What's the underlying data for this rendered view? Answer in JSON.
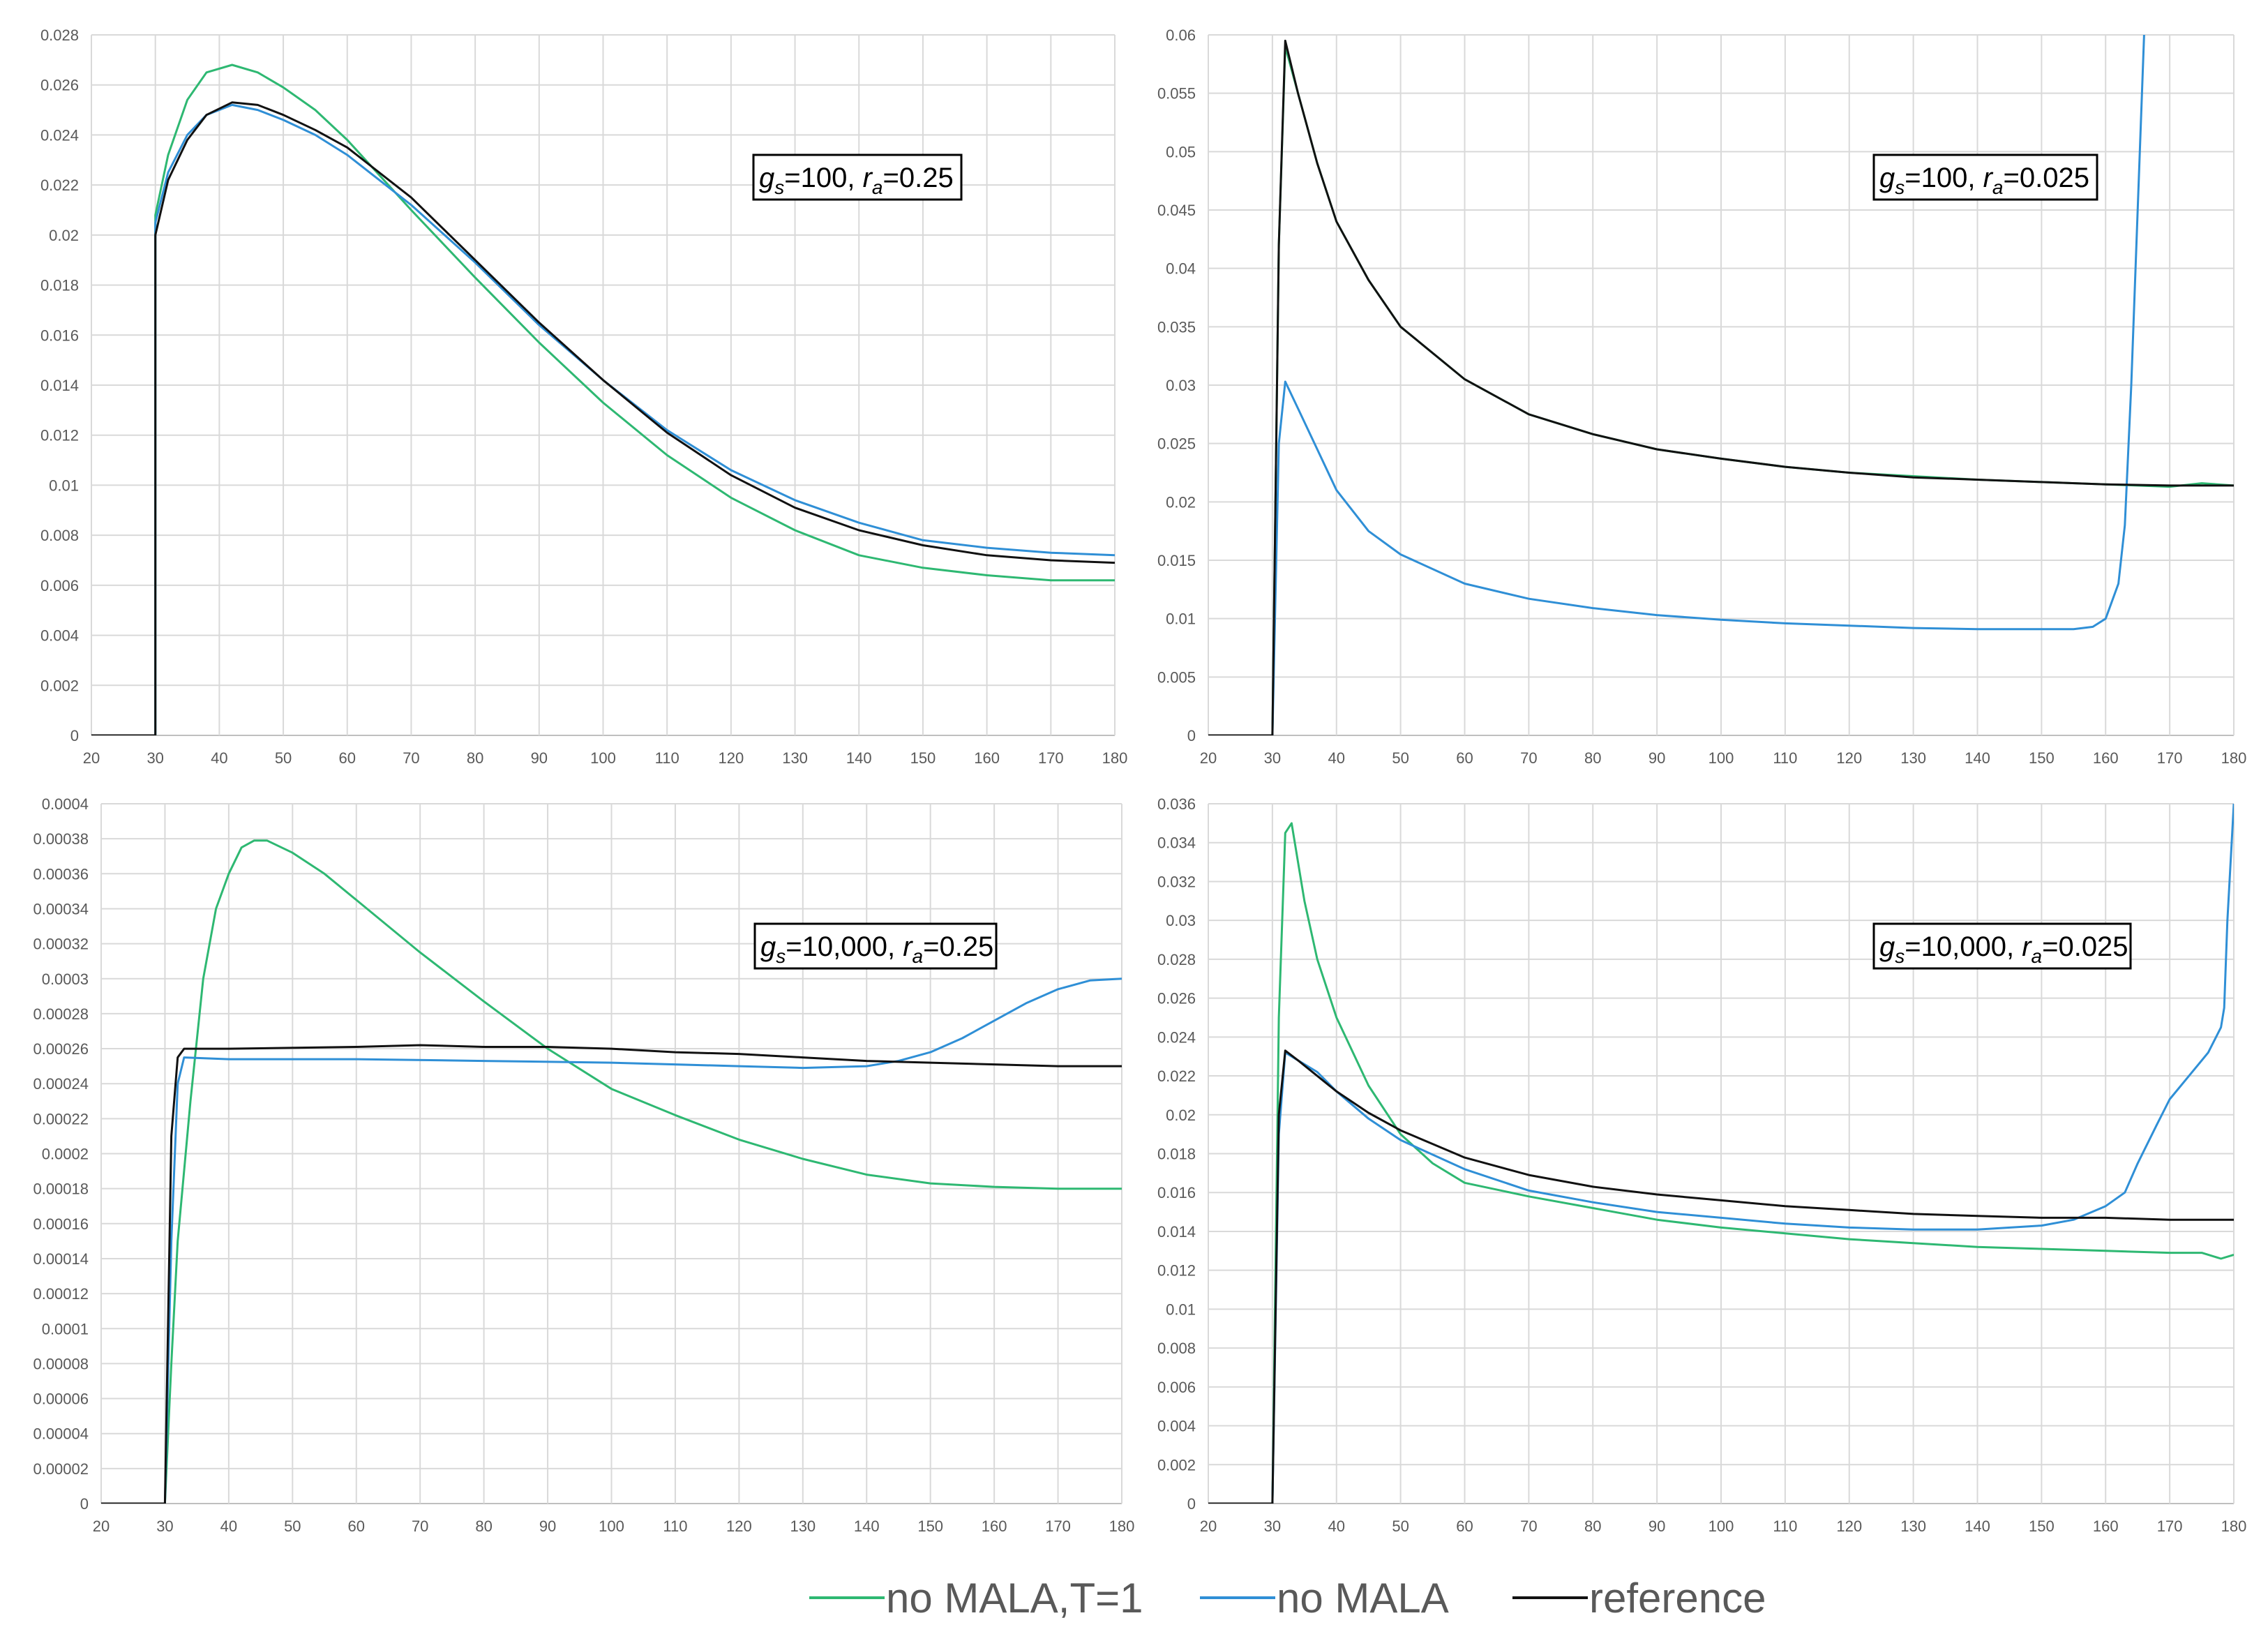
{
  "colors": {
    "green": "#2eb872",
    "blue": "#2f8fd6",
    "black": "#111111",
    "red": "#d62728",
    "grid": "#d9d9d9",
    "axis": "#bfbfbf"
  },
  "legend": [
    {
      "label": "no MALA,T=1",
      "color": "#2eb872"
    },
    {
      "label": "no MALA",
      "color": "#2f8fd6"
    },
    {
      "label": "reference",
      "color": "#111111"
    }
  ],
  "chart_data": [
    {
      "type": "line",
      "annotation": {
        "g": "100",
        "r": "0.25"
      },
      "xlim": [
        20,
        180
      ],
      "xticks": [
        20,
        30,
        40,
        50,
        60,
        70,
        80,
        90,
        100,
        110,
        120,
        130,
        140,
        150,
        160,
        170,
        180
      ],
      "ylim": [
        0,
        0.028
      ],
      "ytick_labels": [
        "0",
        "0.002",
        "0.004",
        "0.006",
        "0.008",
        "0.01",
        "0.012",
        "0.014",
        "0.016",
        "0.018",
        "0.02",
        "0.022",
        "0.024",
        "0.026",
        "0.028"
      ],
      "series": [
        {
          "name": "no MALA,T=1",
          "color": "#2eb872",
          "x": [
            20,
            30,
            30,
            32,
            35,
            38,
            42,
            46,
            50,
            55,
            60,
            70,
            80,
            90,
            100,
            110,
            120,
            130,
            140,
            150,
            160,
            170,
            180
          ],
          "y": [
            0,
            0,
            0.0208,
            0.0232,
            0.0254,
            0.0265,
            0.0268,
            0.0265,
            0.0259,
            0.025,
            0.0238,
            0.021,
            0.0183,
            0.0157,
            0.0133,
            0.0112,
            0.0095,
            0.0082,
            0.0072,
            0.0067,
            0.0064,
            0.0062,
            0.0062
          ]
        },
        {
          "name": "no MALA",
          "color": "#2f8fd6",
          "x": [
            20,
            30,
            30,
            32,
            35,
            38,
            42,
            46,
            50,
            55,
            60,
            70,
            80,
            90,
            100,
            110,
            120,
            130,
            140,
            150,
            160,
            170,
            180
          ],
          "y": [
            0,
            0,
            0.0205,
            0.0225,
            0.024,
            0.0248,
            0.0252,
            0.025,
            0.0246,
            0.024,
            0.0232,
            0.0212,
            0.0189,
            0.0164,
            0.0142,
            0.0122,
            0.0106,
            0.0094,
            0.0085,
            0.0078,
            0.0075,
            0.0073,
            0.0072
          ]
        },
        {
          "name": "reference",
          "color": "#111111",
          "x": [
            20,
            30,
            30,
            32,
            35,
            38,
            42,
            46,
            50,
            55,
            60,
            70,
            80,
            90,
            100,
            110,
            120,
            130,
            140,
            150,
            160,
            170,
            180
          ],
          "y": [
            0,
            0,
            0.02,
            0.0222,
            0.0238,
            0.0248,
            0.0253,
            0.0252,
            0.0248,
            0.0242,
            0.0235,
            0.0215,
            0.019,
            0.0165,
            0.0142,
            0.0121,
            0.0104,
            0.0091,
            0.0082,
            0.0076,
            0.0072,
            0.007,
            0.0069
          ]
        }
      ]
    },
    {
      "type": "line",
      "annotation": {
        "g": "100",
        "r": "0.025"
      },
      "xlim": [
        20,
        180
      ],
      "xticks": [
        20,
        30,
        40,
        50,
        60,
        70,
        80,
        90,
        100,
        110,
        120,
        130,
        140,
        150,
        160,
        170,
        180
      ],
      "ylim": [
        0,
        0.06
      ],
      "ytick_labels": [
        "0",
        "0.005",
        "0.01",
        "0.015",
        "0.02",
        "0.025",
        "0.03",
        "0.035",
        "0.04",
        "0.045",
        "0.05",
        "0.055",
        "0.06"
      ],
      "series": [
        {
          "name": "no MALA,T=1",
          "color": "#2eb872",
          "x": [
            20,
            30,
            31,
            32,
            34,
            37,
            40,
            45,
            50,
            60,
            70,
            80,
            90,
            100,
            110,
            120,
            130,
            140,
            150,
            160,
            170,
            175,
            180
          ],
          "y": [
            0,
            0,
            0.042,
            0.059,
            0.055,
            0.049,
            0.044,
            0.039,
            0.035,
            0.0305,
            0.0275,
            0.0258,
            0.0245,
            0.0237,
            0.023,
            0.0225,
            0.0222,
            0.0219,
            0.0217,
            0.0215,
            0.0213,
            0.0216,
            0.0214
          ]
        },
        {
          "name": "no MALA",
          "color": "#2f8fd6",
          "x": [
            20,
            30,
            31,
            32,
            34,
            37,
            40,
            45,
            50,
            60,
            70,
            80,
            90,
            100,
            110,
            120,
            130,
            140,
            150,
            155,
            158,
            160,
            162,
            163,
            164,
            165,
            166
          ],
          "y": [
            0,
            0,
            0.025,
            0.0303,
            0.028,
            0.0245,
            0.021,
            0.0175,
            0.0155,
            0.013,
            0.0117,
            0.0109,
            0.0103,
            0.0099,
            0.0096,
            0.0094,
            0.0092,
            0.0091,
            0.0091,
            0.0091,
            0.0093,
            0.01,
            0.013,
            0.018,
            0.03,
            0.045,
            0.06
          ]
        },
        {
          "name": "reference",
          "color": "#111111",
          "x": [
            20,
            30,
            31,
            32,
            34,
            37,
            40,
            45,
            50,
            60,
            70,
            80,
            90,
            100,
            110,
            120,
            130,
            140,
            150,
            160,
            170,
            180
          ],
          "y": [
            0,
            0,
            0.042,
            0.0595,
            0.055,
            0.049,
            0.044,
            0.039,
            0.035,
            0.0305,
            0.0275,
            0.0258,
            0.0245,
            0.0237,
            0.023,
            0.0225,
            0.0221,
            0.0219,
            0.0217,
            0.0215,
            0.0214,
            0.0214
          ]
        }
      ]
    },
    {
      "type": "line",
      "annotation": {
        "g": "10,000",
        "r": "0.25"
      },
      "xlim": [
        20,
        180
      ],
      "xticks": [
        20,
        30,
        40,
        50,
        60,
        70,
        80,
        90,
        100,
        110,
        120,
        130,
        140,
        150,
        160,
        170,
        180
      ],
      "ylim": [
        0,
        0.0004
      ],
      "ytick_labels": [
        "0",
        "0.00002",
        "0.00004",
        "0.00006",
        "0.00008",
        "0.0001",
        "0.00012",
        "0.00014",
        "0.00016",
        "0.00018",
        "0.0002",
        "0.00022",
        "0.00024",
        "0.00026",
        "0.00028",
        "0.0003",
        "0.00032",
        "0.00034",
        "0.00036",
        "0.00038",
        "0.0004"
      ],
      "series": [
        {
          "name": "no MALA,T=1",
          "color": "#2eb872",
          "x": [
            20,
            30,
            31,
            32,
            34,
            36,
            38,
            40,
            42,
            44,
            46,
            50,
            55,
            60,
            70,
            80,
            90,
            100,
            110,
            120,
            130,
            140,
            150,
            160,
            170,
            180
          ],
          "y": [
            0,
            0,
            8e-05,
            0.00015,
            0.00023,
            0.0003,
            0.00034,
            0.00036,
            0.000375,
            0.000379,
            0.000379,
            0.000372,
            0.00036,
            0.000345,
            0.000315,
            0.000287,
            0.00026,
            0.000237,
            0.000222,
            0.000208,
            0.000197,
            0.000188,
            0.000183,
            0.000181,
            0.00018,
            0.00018
          ]
        },
        {
          "name": "no MALA",
          "color": "#2f8fd6",
          "x": [
            20,
            30,
            31,
            32,
            33,
            40,
            60,
            80,
            100,
            120,
            130,
            140,
            145,
            150,
            155,
            160,
            165,
            170,
            175,
            180
          ],
          "y": [
            0,
            0,
            0.00015,
            0.00024,
            0.000255,
            0.000254,
            0.000254,
            0.000253,
            0.000252,
            0.00025,
            0.000249,
            0.00025,
            0.000253,
            0.000258,
            0.000266,
            0.000276,
            0.000286,
            0.000294,
            0.000299,
            0.0003
          ]
        },
        {
          "name": "reference",
          "color": "#111111",
          "x": [
            20,
            30,
            31,
            32,
            33,
            40,
            60,
            70,
            80,
            90,
            100,
            110,
            120,
            130,
            140,
            150,
            160,
            170,
            180
          ],
          "y": [
            0,
            0,
            0.00021,
            0.000255,
            0.00026,
            0.00026,
            0.000261,
            0.000262,
            0.000261,
            0.000261,
            0.00026,
            0.000258,
            0.000257,
            0.000255,
            0.000253,
            0.000252,
            0.000251,
            0.00025,
            0.00025
          ]
        }
      ]
    },
    {
      "type": "line",
      "annotation": {
        "g": "10,000",
        "r": "0.025"
      },
      "xlim": [
        20,
        180
      ],
      "xticks": [
        20,
        30,
        40,
        50,
        60,
        70,
        80,
        90,
        100,
        110,
        120,
        130,
        140,
        150,
        160,
        170,
        180
      ],
      "ylim": [
        0,
        0.036
      ],
      "ytick_labels": [
        "0",
        "0.002",
        "0.004",
        "0.006",
        "0.008",
        "0.01",
        "0.012",
        "0.014",
        "0.016",
        "0.018",
        "0.02",
        "0.022",
        "0.024",
        "0.026",
        "0.028",
        "0.03",
        "0.032",
        "0.034",
        "0.036"
      ],
      "series": [
        {
          "name": "no MALA,T=1",
          "color": "#2eb872",
          "x": [
            20,
            30,
            31,
            32,
            33,
            35,
            37,
            40,
            45,
            50,
            55,
            60,
            70,
            80,
            90,
            100,
            110,
            120,
            130,
            140,
            150,
            160,
            170,
            175,
            178,
            180
          ],
          "y": [
            0,
            0,
            0.025,
            0.0345,
            0.035,
            0.031,
            0.028,
            0.025,
            0.0215,
            0.019,
            0.0175,
            0.0165,
            0.0158,
            0.0152,
            0.0146,
            0.0142,
            0.0139,
            0.0136,
            0.0134,
            0.0132,
            0.0131,
            0.013,
            0.0129,
            0.0129,
            0.0126,
            0.0128
          ]
        },
        {
          "name": "no MALA",
          "color": "#2f8fd6",
          "x": [
            20,
            30,
            31,
            32,
            34,
            37,
            40,
            45,
            50,
            60,
            70,
            80,
            90,
            100,
            110,
            120,
            130,
            140,
            150,
            155,
            160,
            163,
            165,
            168,
            170,
            173,
            176,
            178,
            178.5,
            179,
            180
          ],
          "y": [
            0,
            0,
            0.019,
            0.0232,
            0.0228,
            0.0222,
            0.0212,
            0.0198,
            0.0187,
            0.0172,
            0.0161,
            0.0155,
            0.015,
            0.0147,
            0.0144,
            0.0142,
            0.0141,
            0.0141,
            0.0143,
            0.0146,
            0.0153,
            0.016,
            0.0175,
            0.0195,
            0.0208,
            0.022,
            0.0232,
            0.0245,
            0.0255,
            0.03,
            0.036
          ]
        },
        {
          "name": "reference",
          "color": "#111111",
          "x": [
            20,
            30,
            31,
            32,
            34,
            37,
            40,
            45,
            50,
            60,
            70,
            80,
            90,
            100,
            110,
            120,
            130,
            140,
            150,
            160,
            170,
            180
          ],
          "y": [
            0,
            0,
            0.02,
            0.0233,
            0.0228,
            0.022,
            0.0212,
            0.0201,
            0.0192,
            0.0178,
            0.0169,
            0.0163,
            0.0159,
            0.0156,
            0.0153,
            0.0151,
            0.0149,
            0.0148,
            0.0147,
            0.0147,
            0.0146,
            0.0146
          ]
        }
      ]
    }
  ]
}
